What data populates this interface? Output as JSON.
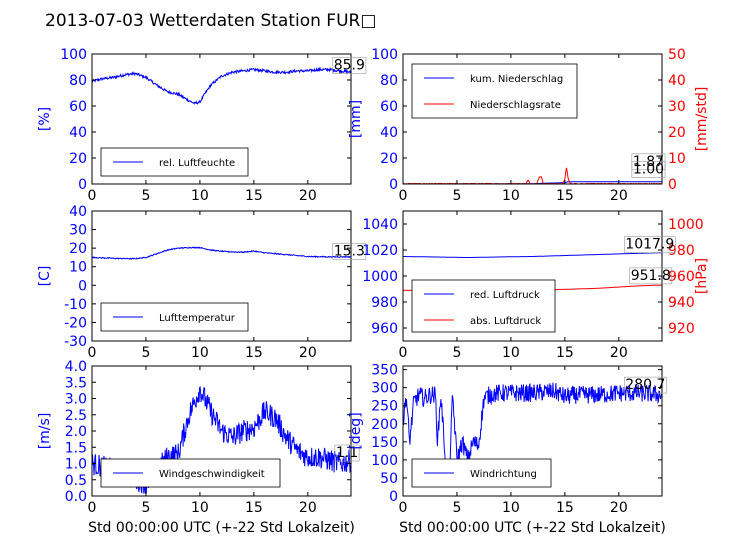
{
  "figure": {
    "title": "2013-07-03 Wetterdaten Station FUR□"
  },
  "colors": {
    "primary": "#0000ff",
    "secondary": "#ff0000",
    "axis": "#000000"
  },
  "chart_data": [
    {
      "id": "humidity",
      "type": "line",
      "xlim": [
        0,
        24
      ],
      "xticks": [
        0,
        5,
        10,
        15,
        20
      ],
      "ylim": [
        0,
        100
      ],
      "yticks": [
        0,
        20,
        40,
        60,
        80,
        100
      ],
      "ylabel": "[%]",
      "xlabel": "",
      "legend": {
        "placement": "lower-left",
        "entries": [
          "rel. Luftfeuchte"
        ]
      },
      "series": [
        {
          "name": "rel. Luftfeuchte",
          "color": "#0000ff",
          "noise": 1.0,
          "x": [
            0,
            1,
            2,
            3,
            4,
            5,
            6,
            7,
            8,
            9,
            9.5,
            10,
            10.5,
            11,
            12,
            13,
            14,
            15,
            16,
            17,
            18,
            19,
            20,
            21,
            22,
            23,
            24
          ],
          "y": [
            79,
            81,
            82,
            84,
            85,
            82,
            76,
            71,
            69,
            64,
            62,
            63,
            70,
            76,
            83,
            86,
            87,
            88,
            87,
            86,
            86,
            87,
            87,
            88,
            88,
            87,
            86
          ]
        }
      ],
      "annotations": [
        {
          "text": "85.9",
          "x": 22.4,
          "y": 88
        }
      ]
    },
    {
      "id": "precipitation",
      "type": "line",
      "xlim": [
        0,
        24
      ],
      "xticks": [
        0,
        5,
        10,
        15,
        20
      ],
      "ylim": [
        0,
        100
      ],
      "yticks": [
        0,
        20,
        40,
        60,
        80,
        100
      ],
      "ylabel": "[mm]",
      "xlabel": "",
      "y2lim": [
        0,
        50
      ],
      "y2ticks": [
        0,
        10,
        20,
        30,
        40,
        50
      ],
      "y2label": "[mm/std]",
      "legend": {
        "placement": "upper-left",
        "entries": [
          "kum. Niederschlag",
          "Niederschlagsrate"
        ]
      },
      "series": [
        {
          "name": "kum. Niederschlag",
          "color": "#0000ff",
          "axis": "left",
          "x": [
            0,
            11,
            12.5,
            13,
            15,
            15.3,
            24
          ],
          "y": [
            0,
            0.1,
            0.3,
            0.6,
            1.0,
            1.8,
            1.8
          ]
        },
        {
          "name": "Niederschlagsrate",
          "color": "#ff0000",
          "axis": "right",
          "noise": 0.15,
          "x": [
            0,
            11.4,
            11.6,
            11.8,
            12.4,
            12.6,
            12.8,
            13,
            14.8,
            15,
            15.15,
            15.3,
            15.5,
            16,
            24
          ],
          "y": [
            0.1,
            0.1,
            1.5,
            0.1,
            0.1,
            2.5,
            3.0,
            0.1,
            0.1,
            2.0,
            6.5,
            2.0,
            0.1,
            0.1,
            0.1
          ]
        }
      ],
      "annotations": [
        {
          "text": "1.87",
          "x": 21.3,
          "y": 7
        },
        {
          "text": "1.00",
          "x": 21.3,
          "y": 4
        }
      ]
    },
    {
      "id": "temperature",
      "type": "line",
      "xlim": [
        0,
        24
      ],
      "xticks": [
        0,
        5,
        10,
        15,
        20
      ],
      "ylim": [
        -30,
        40
      ],
      "yticks": [
        -30,
        -20,
        -10,
        0,
        10,
        20,
        30,
        40
      ],
      "ylabel": "[C]",
      "xlabel": "",
      "legend": {
        "placement": "lower-left",
        "entries": [
          "Lufttemperatur"
        ]
      },
      "series": [
        {
          "name": "Lufttemperatur",
          "color": "#0000ff",
          "noise": 0.25,
          "x": [
            0,
            2,
            4,
            5,
            6,
            7,
            8,
            9,
            10,
            11,
            12,
            13,
            14,
            15,
            16,
            18,
            20,
            22,
            24
          ],
          "y": [
            15,
            14.5,
            14.3,
            15,
            17,
            19,
            20,
            20.3,
            20.3,
            19,
            18.3,
            18,
            17.8,
            18.4,
            17.5,
            16.5,
            15.5,
            15.3,
            15.3
          ]
        }
      ],
      "annotations": [
        {
          "text": "15.3",
          "x": 22.4,
          "y": 16
        }
      ]
    },
    {
      "id": "pressure",
      "type": "line",
      "xlim": [
        0,
        24
      ],
      "xticks": [
        0,
        5,
        10,
        15,
        20
      ],
      "ylim": [
        950,
        1050
      ],
      "yticks": [
        960,
        980,
        1000,
        1020,
        1040
      ],
      "ylabel": "",
      "xlabel": "",
      "y2lim": [
        910,
        1010
      ],
      "y2ticks": [
        920,
        940,
        960,
        980,
        1000
      ],
      "y2label": "[hPa]",
      "legend": {
        "placement": "lower-left",
        "entries": [
          "red. Luftdruck",
          "abs. Luftdruck"
        ]
      },
      "series": [
        {
          "name": "red. Luftdruck",
          "color": "#0000ff",
          "axis": "left",
          "x": [
            0,
            4,
            6,
            8,
            10,
            12,
            14,
            16,
            18,
            20,
            22,
            24
          ],
          "y": [
            1015,
            1014.5,
            1014.2,
            1014.5,
            1014.8,
            1015,
            1015.5,
            1016,
            1016.5,
            1017,
            1017.5,
            1017.9
          ]
        },
        {
          "name": "abs. Luftdruck",
          "color": "#ff0000",
          "axis": "left",
          "x": [
            0,
            4,
            6,
            8,
            10,
            12,
            14,
            16,
            18,
            20,
            22,
            24
          ],
          "y": [
            989,
            988.5,
            988.5,
            988.8,
            989,
            989.2,
            989.5,
            990,
            990.5,
            991.5,
            992.5,
            993
          ]
        }
      ],
      "annotations": [
        {
          "text": "1017.9",
          "x": 20.6,
          "y": 1021
        },
        {
          "text": "951.8",
          "x": 21.1,
          "y": 997
        }
      ]
    },
    {
      "id": "wind-speed",
      "type": "line",
      "xlim": [
        0,
        24
      ],
      "xticks": [
        0,
        5,
        10,
        15,
        20
      ],
      "ylim": [
        0,
        4
      ],
      "yticks": [
        0.0,
        0.5,
        1.0,
        1.5,
        2.0,
        2.5,
        3.0,
        3.5,
        4.0
      ],
      "ylabel": "[m/s]",
      "xlabel": "Std 00:00:00 UTC (+-22 Std Lokalzeit)",
      "legend": {
        "placement": "lower-left",
        "entries": [
          "Windgeschwindigkeit"
        ]
      },
      "series": [
        {
          "name": "Windgeschwindigkeit",
          "color": "#0000ff",
          "noise": 0.35,
          "x": [
            0,
            1,
            2,
            3,
            4,
            5,
            6,
            7,
            8,
            9,
            10,
            11,
            12,
            13,
            14,
            15,
            16,
            17,
            18,
            19,
            20,
            21,
            22,
            23,
            24
          ],
          "y": [
            1.0,
            0.9,
            0.8,
            0.7,
            0.5,
            0.4,
            0.8,
            1.2,
            1.3,
            2.5,
            3.3,
            2.6,
            2.0,
            1.8,
            2.0,
            2.1,
            2.6,
            2.4,
            1.8,
            1.4,
            1.2,
            1.2,
            1.1,
            1.0,
            1.1
          ]
        }
      ],
      "annotations": [
        {
          "text": "1.1",
          "x": 22.6,
          "y": 1.2
        }
      ]
    },
    {
      "id": "wind-direction",
      "type": "line",
      "xlim": [
        0,
        24
      ],
      "xticks": [
        0,
        5,
        10,
        15,
        20
      ],
      "ylim": [
        0,
        360
      ],
      "yticks": [
        0,
        50,
        100,
        150,
        200,
        250,
        300,
        350
      ],
      "ylabel": "[deg]",
      "xlabel": "Std 00:00:00 UTC (+-22 Std Lokalzeit)",
      "legend": {
        "placement": "lower-left",
        "entries": [
          "Windrichtung"
        ]
      },
      "series": [
        {
          "name": "Windrichtung",
          "color": "#0000ff",
          "noise": 25,
          "x": [
            0,
            0.3,
            0.6,
            1.0,
            1.5,
            2,
            2.5,
            3,
            3.2,
            3.5,
            4,
            4.3,
            4.6,
            5,
            5.5,
            6,
            6.5,
            7,
            7.5,
            8,
            9,
            10,
            12,
            14,
            15,
            16,
            18,
            20,
            22,
            24
          ],
          "y": [
            200,
            280,
            150,
            260,
            280,
            270,
            280,
            280,
            150,
            280,
            80,
            60,
            280,
            100,
            150,
            100,
            150,
            140,
            270,
            280,
            285,
            285,
            285,
            290,
            275,
            280,
            280,
            285,
            285,
            280
          ]
        }
      ],
      "annotations": [
        {
          "text": "280.7",
          "x": 20.6,
          "y": 296
        }
      ]
    }
  ]
}
